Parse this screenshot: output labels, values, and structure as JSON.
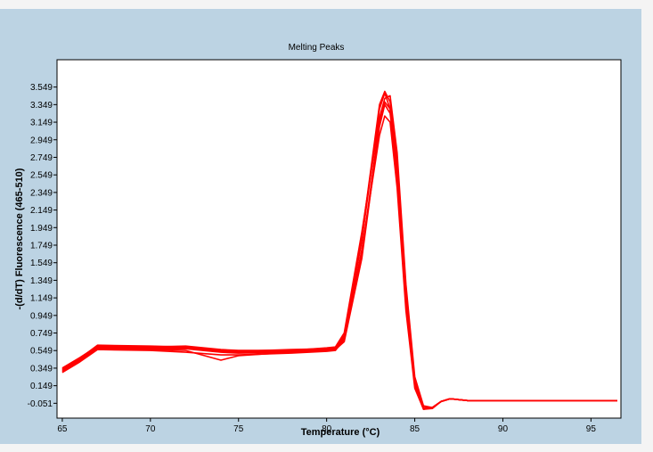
{
  "chart_data": {
    "type": "line",
    "title": "Melting Peaks",
    "xlabel": "Temperature (°C)",
    "ylabel": "-(d/dT) Fluorescence (465-510)",
    "xlim": [
      64.7,
      96.7
    ],
    "ylim": [
      -0.22,
      3.86
    ],
    "xticks": [
      65,
      70,
      75,
      80,
      85,
      90,
      95
    ],
    "yticks": [
      -0.051,
      0.149,
      0.349,
      0.549,
      0.749,
      0.949,
      1.149,
      1.349,
      1.549,
      1.749,
      1.949,
      2.149,
      2.349,
      2.549,
      2.749,
      2.949,
      3.149,
      3.349,
      3.549
    ],
    "ytick_labels": [
      "-0.051",
      "0.149",
      "0.349",
      "0.549",
      "0.749",
      "0.949",
      "1.149",
      "1.349",
      "1.549",
      "1.749",
      "1.949",
      "2.149",
      "2.349",
      "2.549",
      "2.749",
      "2.949",
      "3.149",
      "3.349",
      "3.549"
    ],
    "grid": false,
    "series_color": "#ff0000",
    "series": [
      {
        "x": [
          65,
          66,
          67,
          70,
          72,
          74,
          75,
          78,
          80,
          80.5,
          81,
          82,
          83,
          83.3,
          83.6,
          84,
          84.5,
          85,
          85.5,
          86,
          86.5,
          87,
          88,
          90,
          95,
          96.5
        ],
        "y": [
          0.33,
          0.45,
          0.59,
          0.58,
          0.58,
          0.54,
          0.53,
          0.54,
          0.56,
          0.57,
          0.7,
          1.8,
          3.3,
          3.48,
          3.3,
          2.5,
          1.1,
          0.15,
          -0.12,
          -0.1,
          -0.03,
          0.0,
          -0.02,
          -0.02,
          -0.02,
          -0.02
        ]
      },
      {
        "x": [
          65,
          66,
          67,
          70,
          72,
          74,
          75,
          78,
          80,
          80.5,
          81,
          82,
          83,
          83.3,
          83.6,
          84,
          84.5,
          85,
          85.5,
          86,
          86.5,
          87,
          88,
          90,
          95,
          96.5
        ],
        "y": [
          0.31,
          0.43,
          0.57,
          0.56,
          0.55,
          0.44,
          0.49,
          0.53,
          0.55,
          0.56,
          0.65,
          1.6,
          3.1,
          3.35,
          3.25,
          2.6,
          1.2,
          0.2,
          -0.1,
          -0.1,
          -0.03,
          0.0,
          -0.02,
          -0.02,
          -0.02,
          -0.02
        ]
      },
      {
        "x": [
          65,
          66,
          67,
          70,
          72,
          74,
          75,
          78,
          80,
          80.5,
          81,
          82,
          83,
          83.3,
          83.6,
          84,
          84.5,
          85,
          85.5,
          86,
          86.5,
          87,
          88,
          90,
          95,
          96.5
        ],
        "y": [
          0.35,
          0.47,
          0.6,
          0.59,
          0.6,
          0.56,
          0.55,
          0.55,
          0.58,
          0.59,
          0.75,
          1.9,
          3.2,
          3.42,
          3.45,
          2.8,
          1.3,
          0.25,
          -0.08,
          -0.1,
          -0.03,
          0.0,
          -0.02,
          -0.02,
          -0.02,
          -0.02
        ]
      },
      {
        "x": [
          65,
          66,
          67,
          70,
          72,
          74,
          75,
          78,
          80,
          80.5,
          81,
          82,
          83,
          83.3,
          83.6,
          84,
          84.5,
          85,
          85.5,
          86,
          86.5,
          87,
          88,
          90,
          95,
          96.5
        ],
        "y": [
          0.3,
          0.42,
          0.56,
          0.55,
          0.53,
          0.5,
          0.5,
          0.52,
          0.54,
          0.55,
          0.68,
          1.7,
          3.0,
          3.22,
          3.15,
          2.4,
          1.0,
          0.12,
          -0.12,
          -0.11,
          -0.03,
          0.0,
          -0.02,
          -0.02,
          -0.02,
          -0.02
        ]
      },
      {
        "x": [
          65,
          66,
          67,
          70,
          72,
          74,
          75,
          78,
          80,
          80.5,
          81,
          82,
          83,
          83.3,
          83.6,
          84,
          84.5,
          85,
          85.5,
          86,
          86.5,
          87,
          88,
          90,
          95,
          96.5
        ],
        "y": [
          0.34,
          0.46,
          0.61,
          0.6,
          0.59,
          0.55,
          0.54,
          0.56,
          0.57,
          0.58,
          0.72,
          1.85,
          3.35,
          3.5,
          3.38,
          2.7,
          1.25,
          0.18,
          -0.1,
          -0.1,
          -0.03,
          0.0,
          -0.02,
          -0.02,
          -0.02,
          -0.02
        ]
      },
      {
        "x": [
          65,
          66,
          67,
          70,
          72,
          74,
          75,
          78,
          80,
          80.5,
          81,
          82,
          83,
          83.3,
          83.6,
          84,
          84.5,
          85,
          85.5,
          86,
          86.5,
          87,
          88,
          90,
          95,
          96.5
        ],
        "y": [
          0.32,
          0.44,
          0.58,
          0.57,
          0.57,
          0.53,
          0.52,
          0.53,
          0.56,
          0.57,
          0.67,
          1.65,
          3.15,
          3.38,
          3.3,
          2.55,
          1.15,
          0.16,
          -0.11,
          -0.1,
          -0.03,
          0.0,
          -0.02,
          -0.02,
          -0.02,
          -0.02
        ]
      }
    ]
  }
}
